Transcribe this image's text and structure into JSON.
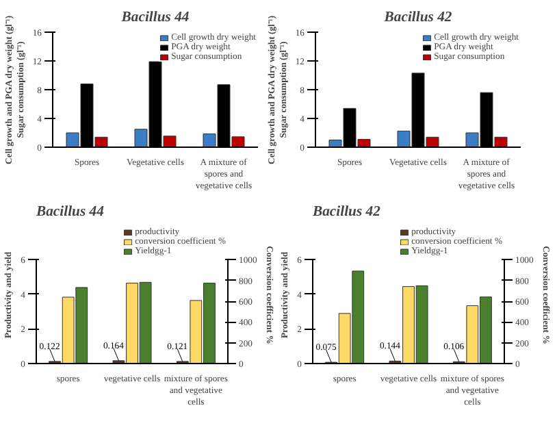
{
  "chart_data": [
    {
      "type": "bar",
      "title": "Bacillus 44",
      "ylabel": "Cell growth and PGA dry weight (gl⁻¹)\nSugar consumption (gl⁻¹)",
      "categories": [
        "Spores",
        "Vegetative cells",
        "A mixture of spores and vegetative cells"
      ],
      "ylim": [
        0,
        16
      ],
      "yticks": [
        0,
        4,
        8,
        12,
        16
      ],
      "legend": "top right",
      "grid": false,
      "series": [
        {
          "name": "Cell growth dry weight",
          "color": "#3b7dc4",
          "values": [
            2.0,
            2.5,
            1.85
          ]
        },
        {
          "name": "PGA dry weight",
          "color": "#000000",
          "values": [
            8.8,
            11.9,
            8.7
          ]
        },
        {
          "name": "Sugar consumption",
          "color": "#c00000",
          "values": [
            1.4,
            1.55,
            1.45
          ]
        }
      ]
    },
    {
      "type": "bar",
      "title": "Bacillus 42",
      "ylabel": "Cell growth and PGA dry weight (gl⁻¹)\nSugar consumption (gl⁻¹)",
      "categories": [
        "Spores",
        "Vegetative cells",
        "A mixture of spores and vegetative cells"
      ],
      "ylim": [
        0,
        16
      ],
      "yticks": [
        0,
        4,
        8,
        12,
        16
      ],
      "legend": "top right",
      "grid": false,
      "series": [
        {
          "name": "Cell growth dry weight",
          "color": "#3b7dc4",
          "values": [
            1.0,
            2.25,
            2.0
          ]
        },
        {
          "name": "PGA dry weight",
          "color": "#000000",
          "values": [
            5.4,
            10.3,
            7.6
          ]
        },
        {
          "name": "Sugar consumption",
          "color": "#c00000",
          "values": [
            1.1,
            1.4,
            1.4
          ]
        }
      ]
    },
    {
      "type": "bar",
      "title": "Bacillus 44",
      "ylabel": "Productivity and yield",
      "y2label": "Conversion coefficient %",
      "categories": [
        "spores",
        "vegetative cells",
        "mixture of spores and vegetative cells"
      ],
      "ylim": [
        0,
        6
      ],
      "yticks": [
        0,
        2,
        4,
        6
      ],
      "y2lim": [
        0,
        1000
      ],
      "y2ticks": [
        0,
        200,
        400,
        600,
        800,
        1000
      ],
      "legend": "top",
      "grid": false,
      "series": [
        {
          "name": "productivity",
          "color": "#5a3a22",
          "values": [
            0.122,
            0.164,
            0.121
          ],
          "value_labels": [
            "0.122",
            "0.164",
            "0.121"
          ]
        },
        {
          "name": "conversion coefficient %",
          "color": "#ffd966",
          "axis": "y2",
          "values": [
            640,
            775,
            608
          ]
        },
        {
          "name": "Yieldgg-1",
          "color": "#4a7f2e",
          "values": [
            4.4,
            4.7,
            4.65
          ]
        }
      ]
    },
    {
      "type": "bar",
      "title": "Bacillus 42",
      "ylabel": "Productivity and yield",
      "y2label": "Conversion coefficient %",
      "categories": [
        "spores",
        "vegetative cells",
        "mixture of spores and vegetative cells"
      ],
      "ylim": [
        0,
        6
      ],
      "yticks": [
        0,
        2,
        4,
        6
      ],
      "y2lim": [
        0,
        1000
      ],
      "y2ticks": [
        0,
        200,
        400,
        600,
        800,
        1000
      ],
      "legend": "top",
      "grid": false,
      "series": [
        {
          "name": "productivity",
          "color": "#5a3a22",
          "values": [
            0.075,
            0.144,
            0.106
          ],
          "value_labels": [
            "0.075",
            "0.144",
            "0.106"
          ]
        },
        {
          "name": "conversion coefficient %",
          "color": "#ffd966",
          "axis": "y2",
          "values": [
            483,
            742,
            558
          ]
        },
        {
          "name": "Yieldgg-1",
          "color": "#4a7f2e",
          "values": [
            5.35,
            4.5,
            3.85
          ]
        }
      ]
    }
  ]
}
